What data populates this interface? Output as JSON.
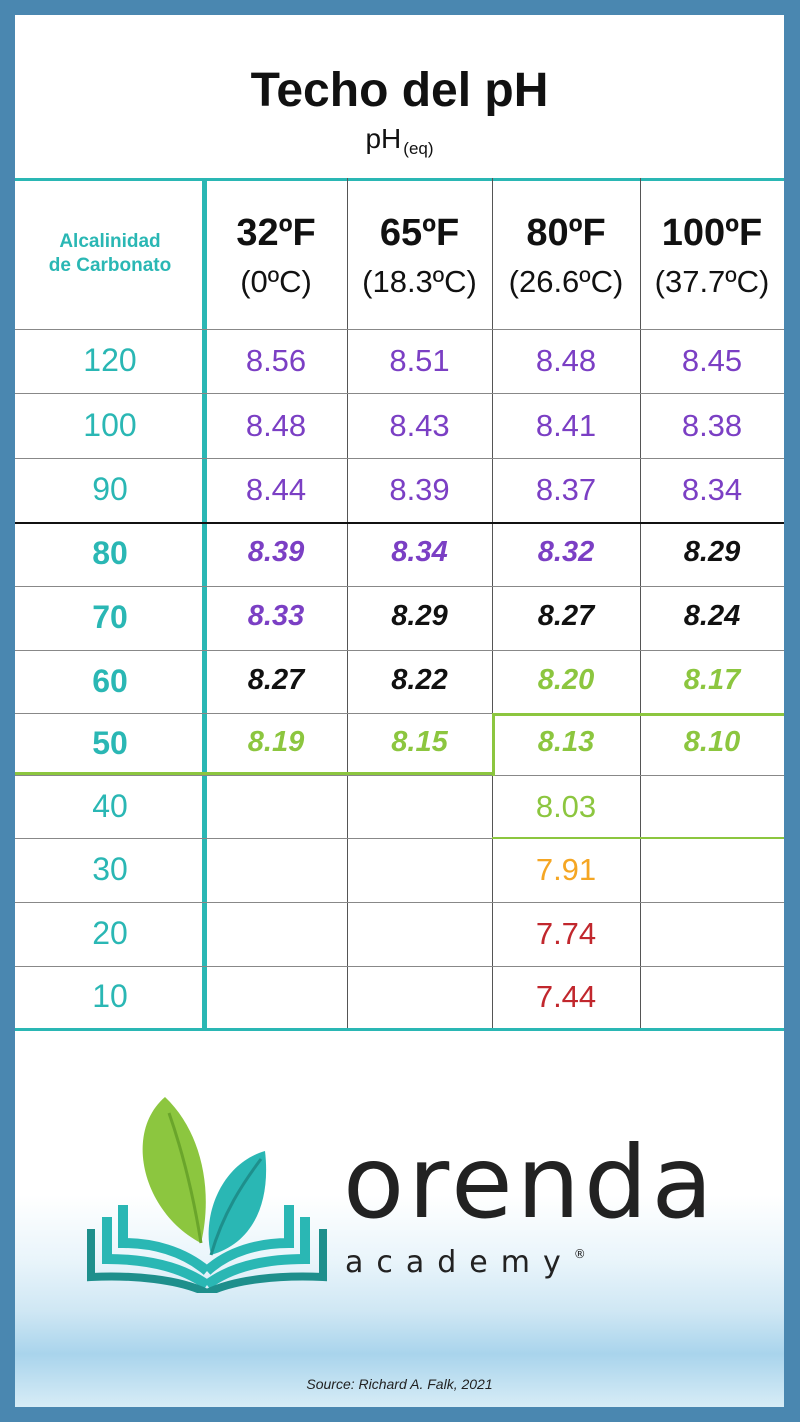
{
  "title": "Techo del pH",
  "subtitle": {
    "main": "pH",
    "sub": "(eq)"
  },
  "table": {
    "row_header": [
      "Alcalinidad",
      "de Carbonato"
    ],
    "columns": [
      {
        "f": "32ºF",
        "c": "(0ºC)"
      },
      {
        "f": "65ºF",
        "c": "(18.3ºC)"
      },
      {
        "f": "80ºF",
        "c": "(26.6ºC)"
      },
      {
        "f": "100ºF",
        "c": "(37.7ºC)"
      }
    ],
    "rows": [
      {
        "alk": "120",
        "values": [
          "8.56",
          "8.51",
          "8.48",
          "8.45"
        ]
      },
      {
        "alk": "100",
        "values": [
          "8.48",
          "8.43",
          "8.41",
          "8.38"
        ]
      },
      {
        "alk": "90",
        "values": [
          "8.44",
          "8.39",
          "8.37",
          "8.34"
        ]
      },
      {
        "alk": "80",
        "values": [
          "8.39",
          "8.34",
          "8.32",
          "8.29"
        ]
      },
      {
        "alk": "70",
        "values": [
          "8.33",
          "8.29",
          "8.27",
          "8.24"
        ]
      },
      {
        "alk": "60",
        "values": [
          "8.27",
          "8.22",
          "8.20",
          "8.17"
        ]
      },
      {
        "alk": "50",
        "values": [
          "8.19",
          "8.15",
          "8.13",
          "8.10"
        ]
      },
      {
        "alk": "40",
        "values": [
          "",
          "",
          "8.03",
          ""
        ]
      },
      {
        "alk": "30",
        "values": [
          "",
          "",
          "7.91",
          ""
        ]
      },
      {
        "alk": "20",
        "values": [
          "",
          "",
          "7.74",
          ""
        ]
      },
      {
        "alk": "10",
        "values": [
          "",
          "",
          "7.44",
          ""
        ]
      }
    ]
  },
  "colors": {
    "teal": "#2ab7b4",
    "purple": "#7b3fc4",
    "green": "#8cc63f",
    "orange": "#f5a623",
    "red": "#c1272d",
    "frame": "#4a87b0"
  },
  "brand": {
    "name": "orenda",
    "tagline": "academy",
    "reg": "®"
  },
  "source": "Source: Richard A. Falk, 2021"
}
